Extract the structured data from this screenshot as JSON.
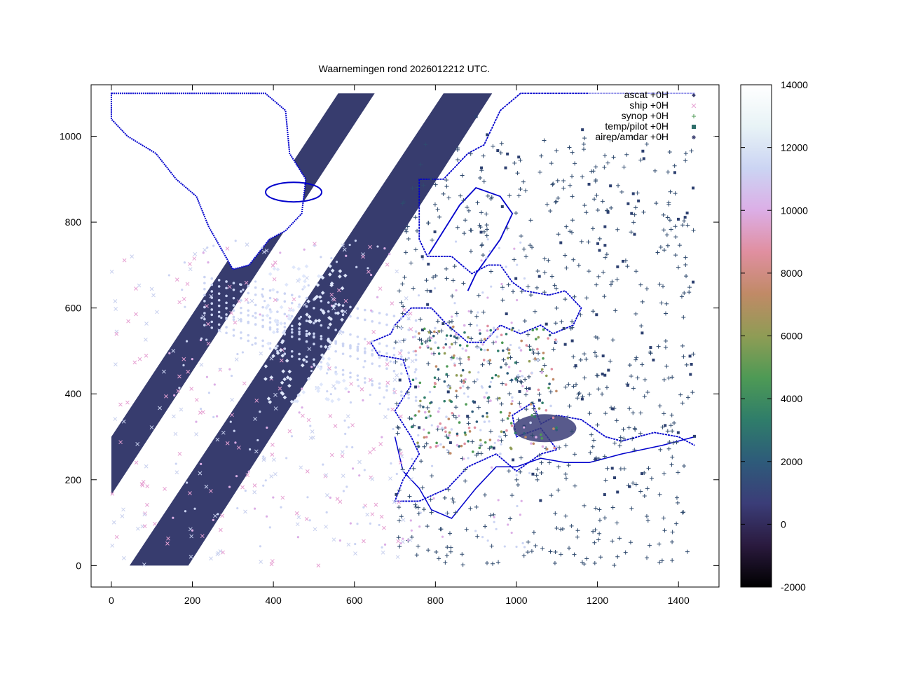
{
  "chart_data": {
    "type": "scatter",
    "title": "Waarnemingen rond 2026012212 UTC.",
    "xlabel": "",
    "ylabel": "",
    "xlim": [
      -50,
      1500
    ],
    "ylim": [
      -50,
      1120
    ],
    "x_ticks": [
      0,
      200,
      400,
      600,
      800,
      1000,
      1200,
      1400
    ],
    "y_ticks": [
      0,
      200,
      400,
      600,
      800,
      1000
    ],
    "grid": false,
    "legend_position": "top-right",
    "legend": [
      {
        "label": "ascat +0H",
        "marker": "diamond"
      },
      {
        "label": "ship +0H",
        "marker": "cross"
      },
      {
        "label": "synop +0H",
        "marker": "plus"
      },
      {
        "label": "temp/pilot +0H",
        "marker": "square"
      },
      {
        "label": "airep/amdar +0H",
        "marker": "star"
      }
    ],
    "colorbar": {
      "min": -2000,
      "max": 14000,
      "ticks": [
        -2000,
        0,
        2000,
        4000,
        6000,
        8000,
        10000,
        12000,
        14000
      ],
      "palette": [
        "#000000",
        "#2a1a3e",
        "#3b3d78",
        "#2e5b7a",
        "#2f7d6a",
        "#4e9a55",
        "#8f9c55",
        "#c08a66",
        "#e08fa0",
        "#dcaee6",
        "#cbd4f3",
        "#e8f3f6",
        "#ffffff"
      ]
    },
    "series": [
      {
        "name": "ascat +0H",
        "color": "#373c6e",
        "swaths": [
          {
            "lower_start": [
              0,
              165
            ],
            "lower_end": [
              650,
              1100
            ],
            "upper_start": [
              0,
              300
            ],
            "upper_end": [
              560,
              1100
            ]
          },
          {
            "lower_start": [
              190,
              0
            ],
            "lower_end": [
              940,
              1100
            ],
            "upper_start": [
              45,
              0
            ],
            "upper_end": [
              820,
              1100
            ]
          }
        ]
      },
      {
        "name": "ship +0H",
        "color": "#e6a0d2"
      },
      {
        "name": "synop +0H",
        "color": "#2f4a6e"
      },
      {
        "name": "temp/pilot +0H",
        "color": "#2d6e6a"
      },
      {
        "name": "airep/amdar +0H",
        "color": "#c8d6f0"
      }
    ],
    "coastline_color": "#0000cc"
  }
}
